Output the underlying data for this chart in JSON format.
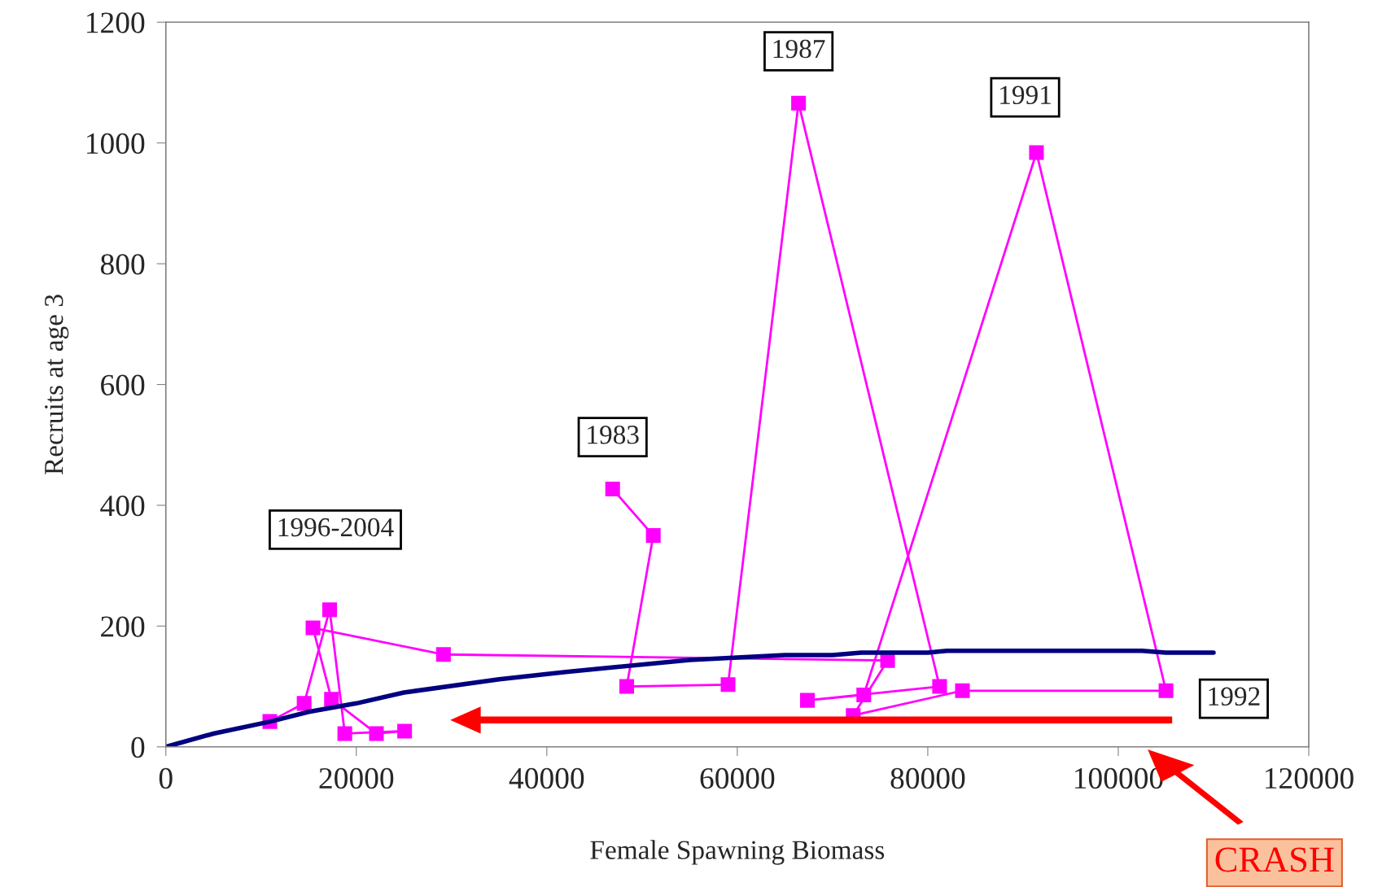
{
  "chart_data": {
    "type": "line",
    "xlabel": "Female Spawning Biomass",
    "ylabel": "Recruits at age 3",
    "series": [
      {
        "color": "#ff00ff",
        "marker": "square",
        "x": [
          46910,
          51180,
          48390,
          59030,
          66430,
          81240,
          67360,
          73280,
          91410,
          105010,
          83640,
          72170,
          75780,
          29150,
          15450,
          17390,
          22110,
          25070,
          18790,
          17200,
          14520,
          10920
        ],
        "values": [
          427,
          350,
          100,
          103,
          1066,
          100,
          77,
          86,
          984,
          93,
          93,
          52,
          143,
          153,
          197,
          79,
          22,
          26,
          22,
          227,
          72,
          42
        ]
      },
      {
        "color": "#000080",
        "marker": "none",
        "x": [
          0,
          5000,
          11000,
          15000,
          20000,
          25000,
          35000,
          42000,
          55000,
          65000,
          70000,
          73000,
          80000,
          82000,
          102500,
          105000,
          110000
        ],
        "values": [
          0,
          22,
          42,
          58,
          72,
          90,
          112,
          124,
          144,
          152,
          152,
          156,
          156,
          159,
          159,
          156,
          156
        ]
      }
    ],
    "annotations": [
      {
        "text": "1983",
        "x": 46910,
        "y": 427
      },
      {
        "text": "1987",
        "x": 66430,
        "y": 1066
      },
      {
        "text": "1991",
        "x": 91410,
        "y": 984
      },
      {
        "text": "1992",
        "x": 105010,
        "y": 93
      },
      {
        "text": "1996-2004",
        "x": 17200,
        "y": 227
      },
      "CRASH"
    ],
    "xlim": [
      0,
      120000
    ],
    "xticks": [
      0,
      20000,
      40000,
      60000,
      80000,
      100000,
      120000
    ],
    "ylim": [
      0,
      1200
    ],
    "yticks": [
      0,
      200,
      400,
      600,
      800,
      1000,
      1200
    ],
    "grid": false,
    "legend": false
  }
}
